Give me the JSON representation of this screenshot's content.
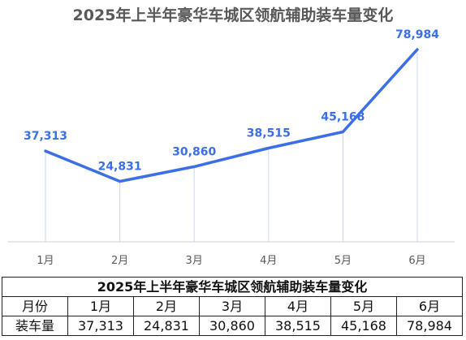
{
  "chart_data": {
    "type": "line",
    "title": "2025年上半年豪华车城区领航辅助装车量变化",
    "categories": [
      "1月",
      "2月",
      "3月",
      "4月",
      "5月",
      "6月"
    ],
    "series": [
      {
        "values": [
          37313,
          24831,
          30860,
          38515,
          45168,
          78984
        ]
      }
    ],
    "data_labels": [
      "37,313",
      "24,831",
      "30,860",
      "38,515",
      "45,168",
      "78,984"
    ],
    "ylim": [
      0,
      90000
    ],
    "grid": false,
    "line_color": "#3b6fe8",
    "label_color": "#3b6fe8",
    "drop_line_color": "#c9d6f3"
  },
  "table": {
    "title": "2025年上半年豪华车城区领航辅助装车量变化",
    "header_label": "月份",
    "row_label": "装车量",
    "months": [
      "1月",
      "2月",
      "3月",
      "4月",
      "5月",
      "6月"
    ],
    "values": [
      "37,313",
      "24,831",
      "30,860",
      "38,515",
      "45,168",
      "78,984"
    ]
  }
}
